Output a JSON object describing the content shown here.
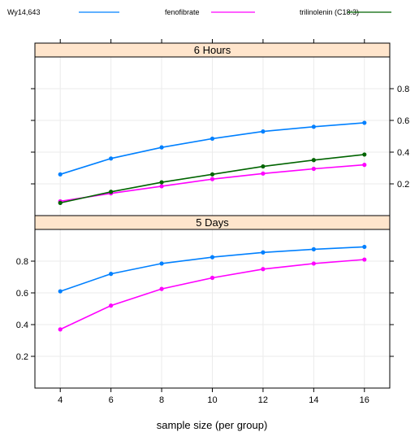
{
  "chart_data": {
    "type": "line",
    "xlabel": "sample size (per group)",
    "x": [
      4,
      6,
      8,
      10,
      12,
      14,
      16
    ],
    "xlim": [
      3,
      17
    ],
    "ylim": [
      0.0,
      1.0
    ],
    "x_ticks": [
      "4",
      "6",
      "8",
      "10",
      "12",
      "14",
      "16"
    ],
    "y_ticks": [
      "0.2",
      "0.4",
      "0.6",
      "0.8"
    ],
    "grid": true,
    "legend": {
      "placement": "top",
      "entries": [
        {
          "name": "Wy14,643",
          "color": "#0080ff"
        },
        {
          "name": "fenofibrate",
          "color": "#ff00ff"
        },
        {
          "name": "trilinolenin (C18:3)",
          "color": "#006400"
        }
      ]
    },
    "panels": [
      {
        "title": "6 Hours",
        "series": [
          {
            "name": "Wy14,643",
            "color": "#0080ff",
            "values": [
              0.26,
              0.36,
              0.43,
              0.485,
              0.53,
              0.56,
              0.585
            ]
          },
          {
            "name": "fenofibrate",
            "color": "#ff00ff",
            "values": [
              0.09,
              0.14,
              0.185,
              0.23,
              0.265,
              0.295,
              0.32
            ]
          },
          {
            "name": "trilinolenin (C18:3)",
            "color": "#006400",
            "values": [
              0.08,
              0.15,
              0.21,
              0.26,
              0.31,
              0.35,
              0.385
            ]
          }
        ]
      },
      {
        "title": "5 Days",
        "series": [
          {
            "name": "Wy14,643",
            "color": "#0080ff",
            "values": [
              0.61,
              0.72,
              0.785,
              0.825,
              0.855,
              0.875,
              0.89
            ]
          },
          {
            "name": "fenofibrate",
            "color": "#ff00ff",
            "values": [
              0.37,
              0.52,
              0.625,
              0.695,
              0.75,
              0.785,
              0.81
            ]
          }
        ]
      }
    ]
  }
}
